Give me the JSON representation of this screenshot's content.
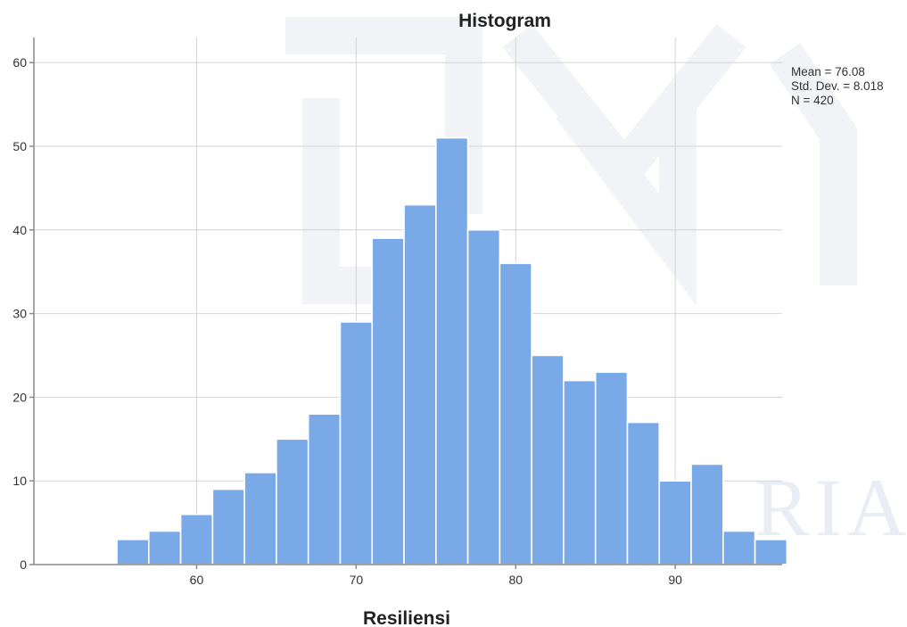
{
  "chart_data": {
    "type": "bar",
    "title": "Histogram",
    "xlabel": "Resiliensi",
    "ylabel": "",
    "bin_width": 2,
    "bins": [
      {
        "x0": 55,
        "x1": 57,
        "count": 3
      },
      {
        "x0": 57,
        "x1": 59,
        "count": 4
      },
      {
        "x0": 59,
        "x1": 61,
        "count": 6
      },
      {
        "x0": 61,
        "x1": 63,
        "count": 9
      },
      {
        "x0": 63,
        "x1": 65,
        "count": 11
      },
      {
        "x0": 65,
        "x1": 67,
        "count": 15
      },
      {
        "x0": 67,
        "x1": 69,
        "count": 18
      },
      {
        "x0": 69,
        "x1": 71,
        "count": 29
      },
      {
        "x0": 71,
        "x1": 73,
        "count": 39
      },
      {
        "x0": 73,
        "x1": 75,
        "count": 43
      },
      {
        "x0": 75,
        "x1": 77,
        "count": 51
      },
      {
        "x0": 77,
        "x1": 79,
        "count": 40
      },
      {
        "x0": 79,
        "x1": 81,
        "count": 36
      },
      {
        "x0": 81,
        "x1": 83,
        "count": 25
      },
      {
        "x0": 83,
        "x1": 85,
        "count": 22
      },
      {
        "x0": 85,
        "x1": 87,
        "count": 23
      },
      {
        "x0": 87,
        "x1": 89,
        "count": 17
      },
      {
        "x0": 89,
        "x1": 91,
        "count": 10
      },
      {
        "x0": 91,
        "x1": 93,
        "count": 12
      },
      {
        "x0": 93,
        "x1": 95,
        "count": 4
      },
      {
        "x0": 95,
        "x1": 97,
        "count": 3
      }
    ],
    "xlim": [
      49.8,
      96.7
    ],
    "ylim": [
      0,
      63
    ],
    "xticks": [
      60,
      70,
      80,
      90
    ],
    "yticks": [
      0,
      10,
      20,
      30,
      40,
      50,
      60
    ],
    "grid": true,
    "bar_color": "#7aa9e8",
    "stats": {
      "mean_label": "Mean = 76.08",
      "std_label": "Std. Dev. = 8.018",
      "n_label": "N = 420"
    },
    "watermark": "UIN SUSKA RIAU"
  }
}
